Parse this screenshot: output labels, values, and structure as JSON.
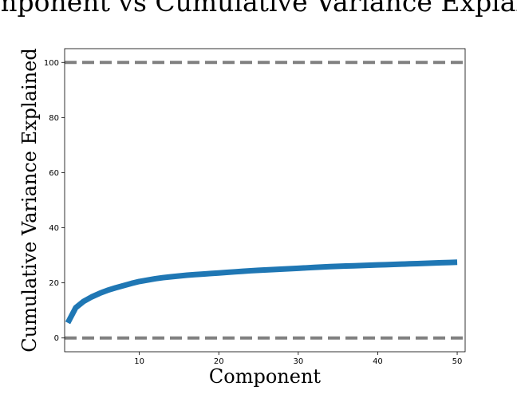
{
  "chart_data": {
    "type": "line",
    "title": "Component vs Cumulative Variance Explained",
    "xlabel": "Component",
    "ylabel": "Cumulative Variance Explained",
    "xlim": [
      0.6,
      51.0
    ],
    "ylim": [
      -5,
      105
    ],
    "xticks": [
      10,
      20,
      30,
      40,
      50
    ],
    "yticks": [
      0,
      20,
      40,
      60,
      80,
      100
    ],
    "grid": false,
    "colors": {
      "series": "#1f77b4",
      "reference": "#808080"
    },
    "reference_lines": [
      {
        "y": 100,
        "style": "dashed"
      },
      {
        "y": 0,
        "style": "dashed"
      }
    ],
    "series": [
      {
        "x": [
          1,
          2,
          3,
          4,
          5,
          6,
          7,
          8,
          9,
          10,
          11,
          12,
          13,
          14,
          15,
          16,
          17,
          18,
          19,
          20,
          21,
          22,
          23,
          24,
          25,
          26,
          27,
          28,
          29,
          30,
          31,
          32,
          33,
          34,
          35,
          36,
          37,
          38,
          39,
          40,
          41,
          42,
          43,
          44,
          45,
          46,
          47,
          48,
          49,
          50
        ],
        "values": [
          5.5,
          11.0,
          13.3,
          14.9,
          16.2,
          17.3,
          18.2,
          19.0,
          19.8,
          20.5,
          21.0,
          21.5,
          21.9,
          22.2,
          22.5,
          22.8,
          23.0,
          23.2,
          23.4,
          23.6,
          23.8,
          24.0,
          24.2,
          24.4,
          24.55,
          24.7,
          24.85,
          25.0,
          25.15,
          25.3,
          25.45,
          25.6,
          25.75,
          25.9,
          26.0,
          26.1,
          26.2,
          26.3,
          26.4,
          26.5,
          26.6,
          26.7,
          26.8,
          26.9,
          27.0,
          27.1,
          27.2,
          27.3,
          27.4,
          27.5
        ]
      }
    ]
  }
}
